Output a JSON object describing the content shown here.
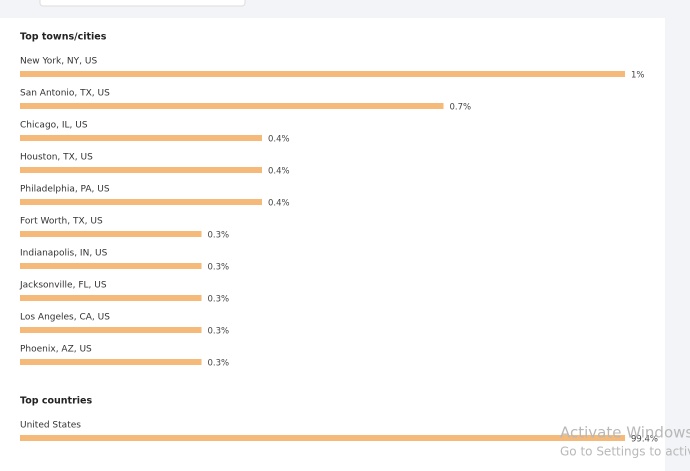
{
  "chart_data": [
    {
      "type": "bar",
      "orientation": "horizontal",
      "title": "Top towns/cities",
      "color": "#f5b97a",
      "categories": [
        "New York, NY, US",
        "San Antonio, TX, US",
        "Chicago, IL, US",
        "Houston, TX, US",
        "Philadelphia, PA, US",
        "Fort Worth, TX, US",
        "Indianapolis, IN, US",
        "Jacksonville, FL, US",
        "Los Angeles, CA, US",
        "Phoenix, AZ, US"
      ],
      "values": [
        1,
        0.7,
        0.4,
        0.4,
        0.4,
        0.3,
        0.3,
        0.3,
        0.3,
        0.3
      ],
      "value_labels": [
        "1%",
        "0.7%",
        "0.4%",
        "0.4%",
        "0.4%",
        "0.3%",
        "0.3%",
        "0.3%",
        "0.3%",
        "0.3%"
      ]
    },
    {
      "type": "bar",
      "orientation": "horizontal",
      "title": "Top countries",
      "color": "#f5b97a",
      "categories": [
        "United States"
      ],
      "values": [
        99.4
      ],
      "value_labels": [
        "99.4%"
      ]
    }
  ],
  "watermark": {
    "title": "Activate Windows",
    "subtitle": "Go to Settings to activate Windows."
  }
}
